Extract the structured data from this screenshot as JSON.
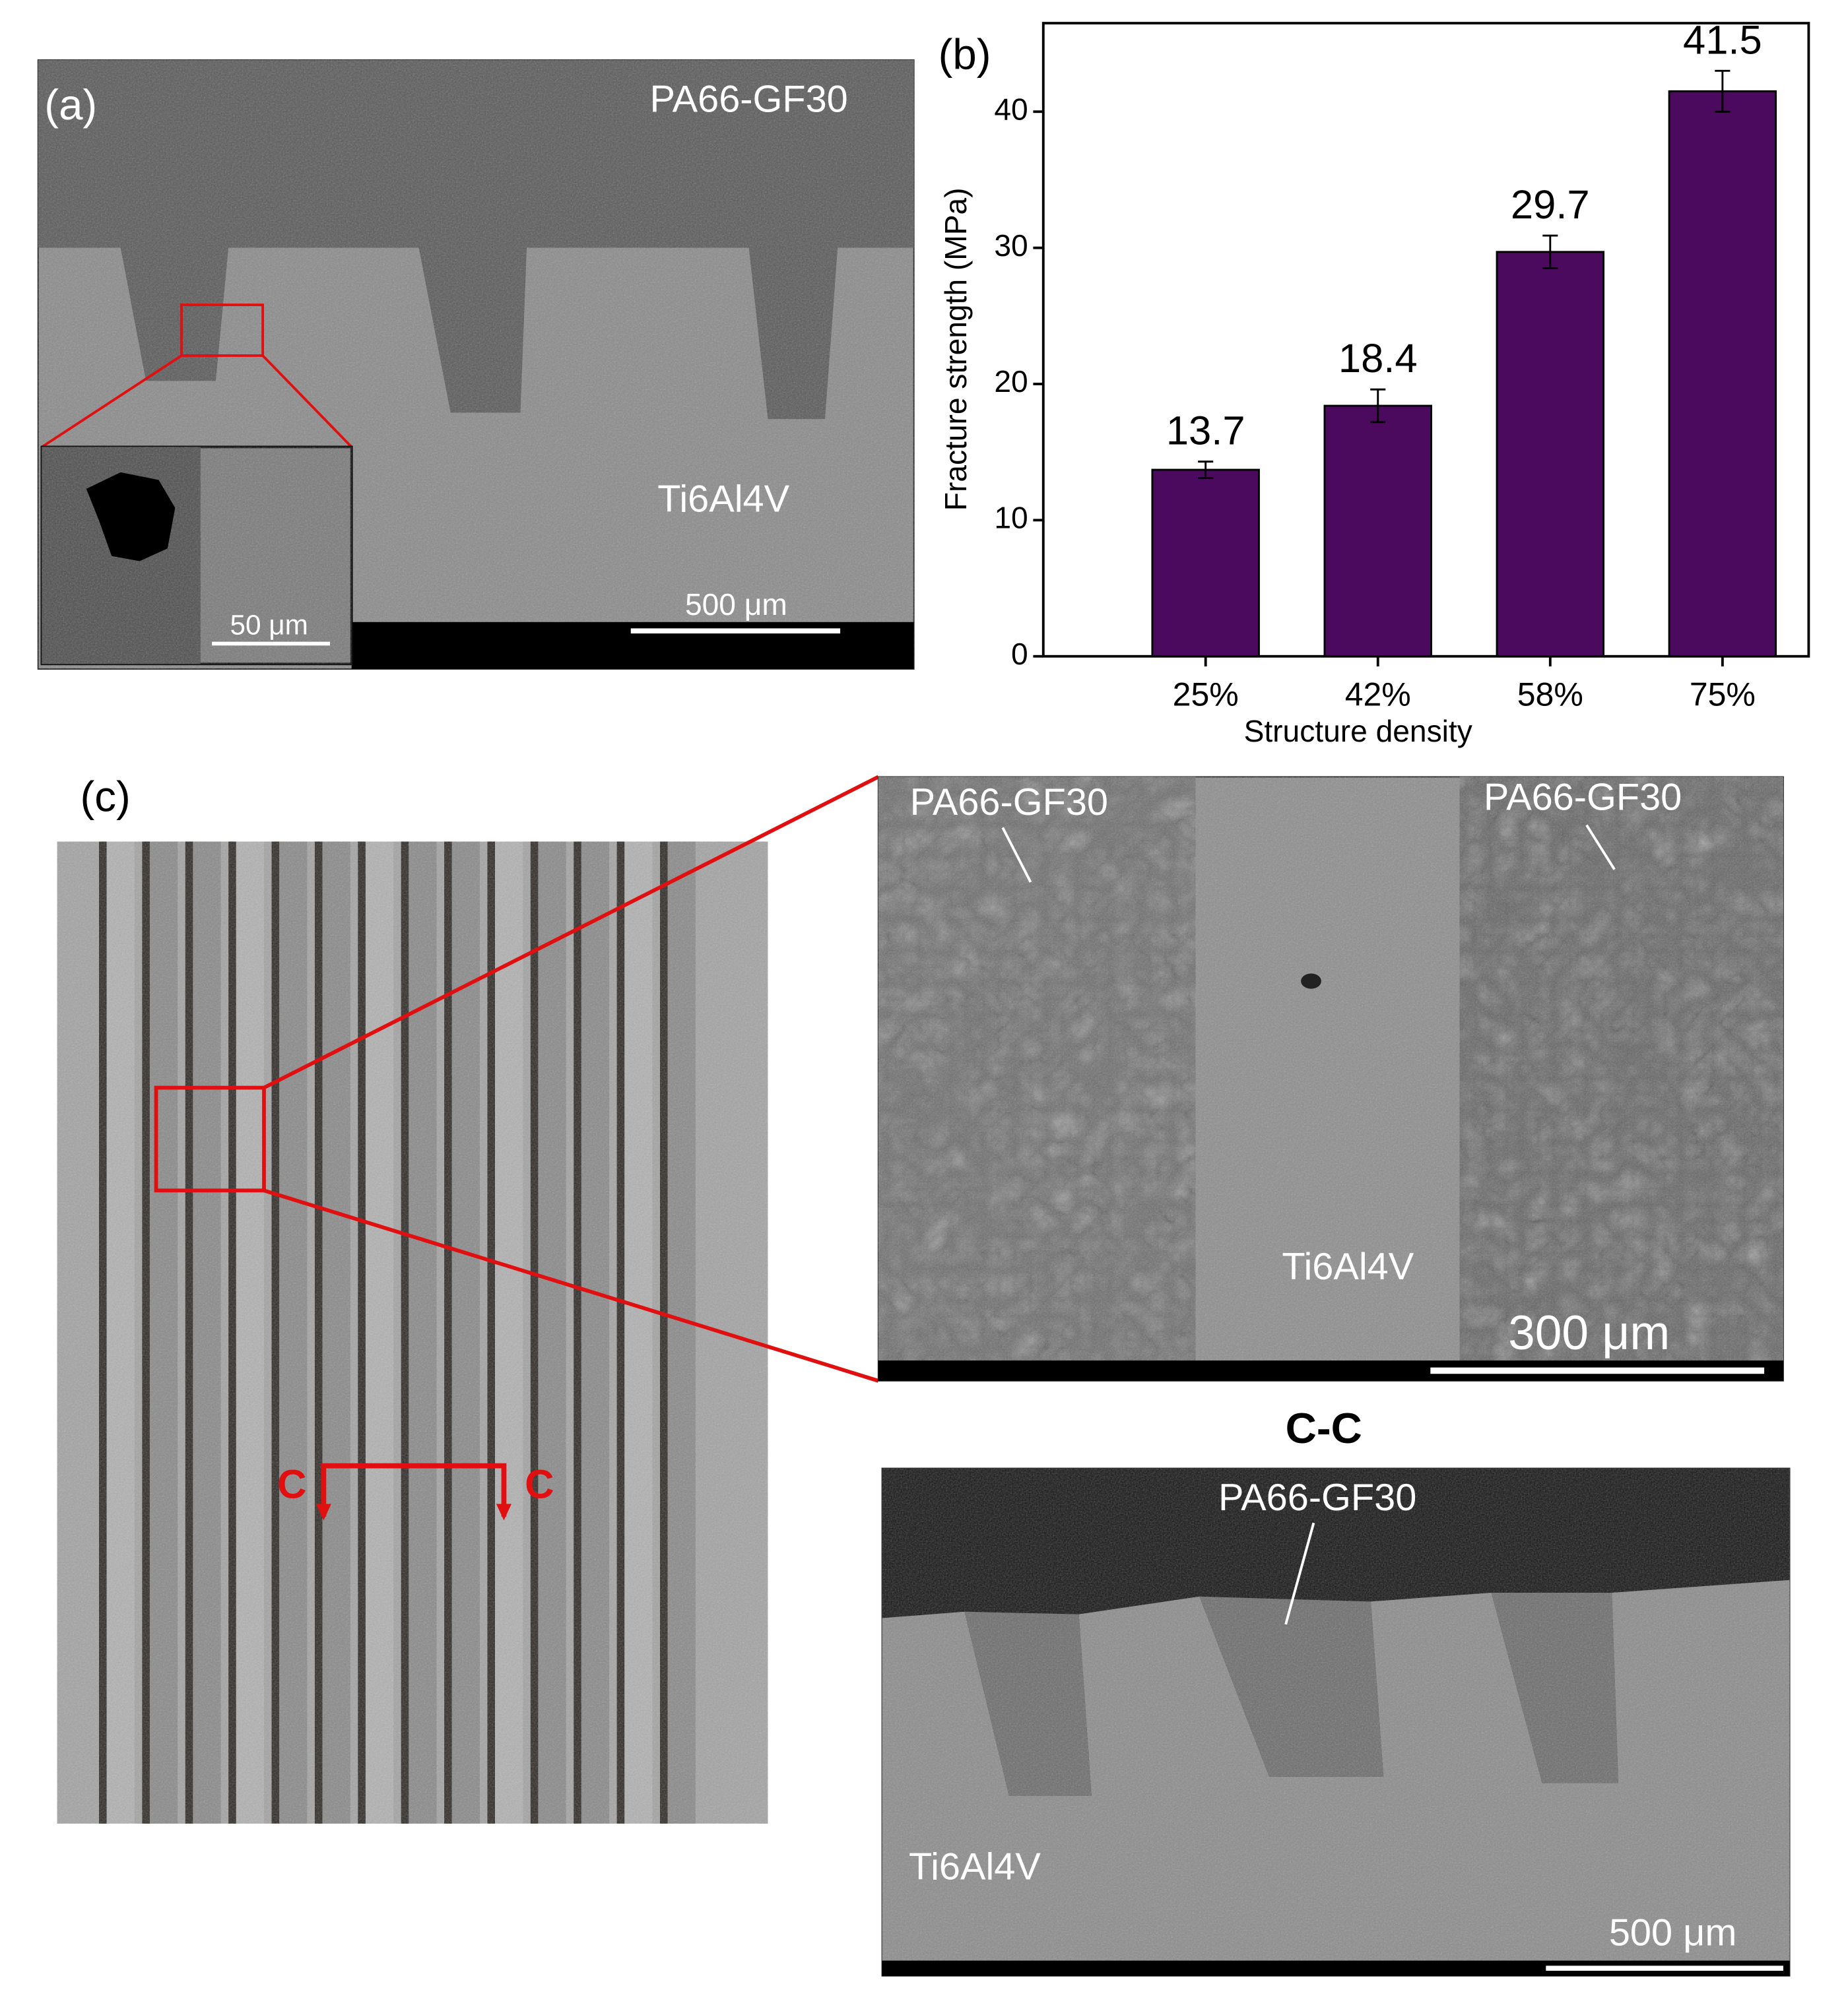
{
  "panel_a": {
    "label": "(a)",
    "matrix": "PA66-GF30",
    "substrate": "Ti6Al4V",
    "scale": "500 μm",
    "inset_scale": "50 μm"
  },
  "chart_data": {
    "type": "bar",
    "panel_label": "(b)",
    "categories": [
      "25%",
      "42%",
      "58%",
      "75%"
    ],
    "values": [
      13.7,
      18.4,
      29.7,
      41.5
    ],
    "errors": [
      0.6,
      1.2,
      1.2,
      1.5
    ],
    "color": "#4b0a5e",
    "ylim": [
      0,
      46.5
    ],
    "yticks": [
      0,
      10,
      20,
      30,
      40
    ],
    "xlabel": "Structure density",
    "ylabel": "Fracture strength (MPa)"
  },
  "panel_c": {
    "label": "(c)",
    "section_marks": [
      "C",
      "C"
    ],
    "sem": {
      "matrix_left": "PA66-GF30",
      "matrix_right": "PA66-GF30",
      "substrate": "Ti6Al4V",
      "scale": "300 μm"
    },
    "section": {
      "title": "C-C",
      "matrix": "PA66-GF30",
      "substrate": "Ti6Al4V",
      "scale": "500 μm"
    }
  }
}
